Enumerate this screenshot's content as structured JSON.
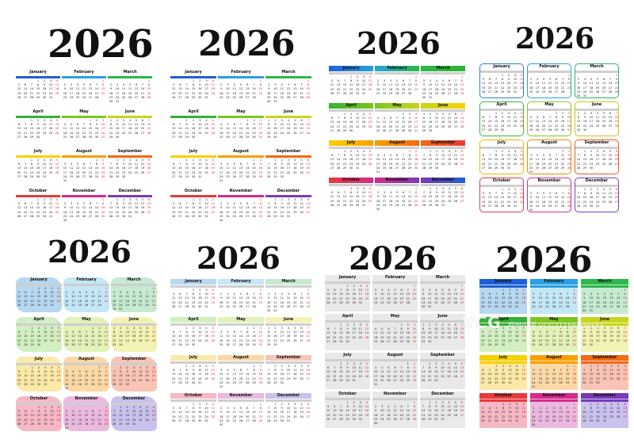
{
  "year": "2026",
  "months": [
    "January",
    "February",
    "March",
    "April",
    "May",
    "June",
    "July",
    "August",
    "September",
    "October",
    "November",
    "December"
  ],
  "weekdays_short": [
    "mo",
    "tu",
    "we",
    "th",
    "fr",
    "sa",
    "su"
  ],
  "colors": {
    "rainbow": [
      "#1f5fd6",
      "#2aa0e0",
      "#2cb84a",
      "#33b233",
      "#7cc520",
      "#c8d51a",
      "#f5d100",
      "#f7a000",
      "#f36a12",
      "#e83a3a",
      "#d62b8a",
      "#7a3ab8"
    ],
    "pastel": [
      "#b6d8f0",
      "#c3e7f5",
      "#c5ead0",
      "#d2efc2",
      "#e2f2b8",
      "#f3f2b5",
      "#fbe9a8",
      "#fbd8a6",
      "#f9c4b5",
      "#f6b8c4",
      "#ebb9e0",
      "#c9c1ee"
    ],
    "gray": "#e9e9e9",
    "frame": [
      "#2b7fe0",
      "#25a8d8",
      "#27b86a",
      "#3cb83c",
      "#8cc820",
      "#d6c214",
      "#f2b800",
      "#f08a00",
      "#ef5a1a",
      "#e43a4a",
      "#c9358f",
      "#6f45c0"
    ]
  },
  "watermark": {
    "logo": "VCG",
    "text": "视觉中国 VCG21156909344"
  }
}
